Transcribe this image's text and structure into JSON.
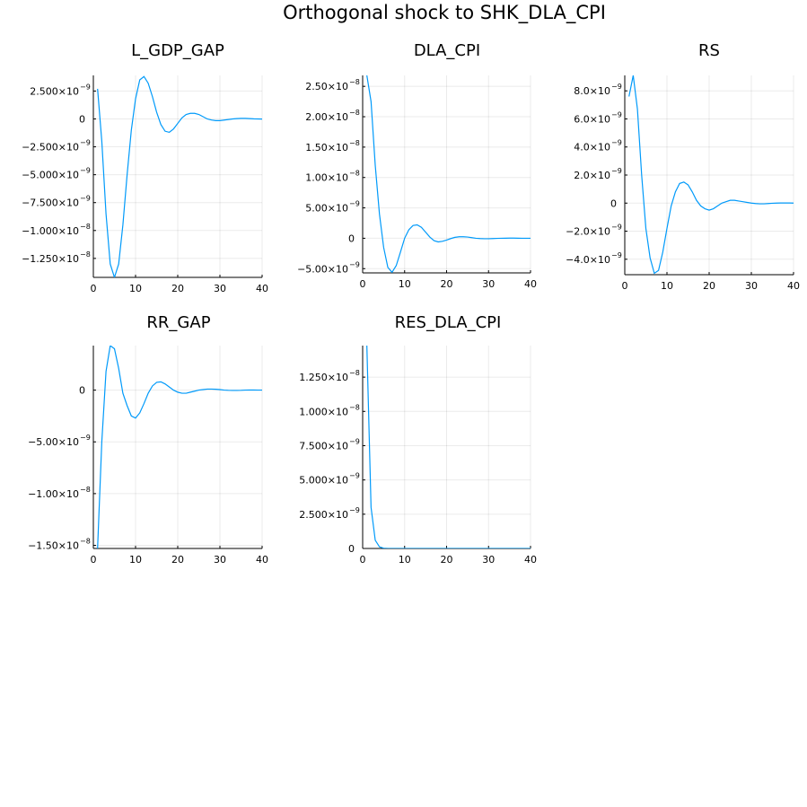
{
  "figure": {
    "title": "Orthogonal shock to SHK_DLA_CPI",
    "line_color": "#009AFA"
  },
  "chart_data": [
    {
      "type": "line",
      "title": "L_GDP_GAP",
      "xlim": [
        0,
        40
      ],
      "ylim": [
        -1.42e-08,
        3.9e-09
      ],
      "xticks": [
        0,
        10,
        20,
        30,
        40
      ],
      "yticks": [
        {
          "value": 2.5e-09,
          "mant": "2.500×10",
          "exp": "−9"
        },
        {
          "value": 0,
          "mant": "0",
          "exp": ""
        },
        {
          "value": -2.5e-09,
          "mant": "−2.500×10",
          "exp": "−9"
        },
        {
          "value": -5e-09,
          "mant": "−5.000×10",
          "exp": "−9"
        },
        {
          "value": -7.5e-09,
          "mant": "−7.500×10",
          "exp": "−9"
        },
        {
          "value": -1e-08,
          "mant": "−1.000×10",
          "exp": "−8"
        },
        {
          "value": -1.25e-08,
          "mant": "−1.250×10",
          "exp": "−8"
        }
      ],
      "x": [
        1,
        2,
        3,
        4,
        5,
        6,
        7,
        8,
        9,
        10,
        11,
        12,
        13,
        14,
        15,
        16,
        17,
        18,
        19,
        20,
        21,
        22,
        23,
        24,
        25,
        26,
        27,
        28,
        29,
        30,
        31,
        32,
        33,
        34,
        35,
        36,
        37,
        38,
        39,
        40
      ],
      "values": [
        2.7e-09,
        -2e-09,
        -8.5e-09,
        -1.3e-08,
        -1.42e-08,
        -1.3e-08,
        -9.5e-09,
        -5e-09,
        -1e-09,
        1.8e-09,
        3.5e-09,
        3.8e-09,
        3.2e-09,
        2e-09,
        6e-10,
        -5e-10,
        -1.1e-09,
        -1.2e-09,
        -9e-10,
        -4e-10,
        1e-10,
        4e-10,
        5e-10,
        5e-10,
        4e-10,
        2e-10,
        0,
        -1e-10,
        -1.5e-10,
        -1.5e-10,
        -1e-10,
        -5e-11,
        0,
        3e-11,
        5e-11,
        5e-11,
        3e-11,
        1e-11,
        0,
        -1e-11
      ]
    },
    {
      "type": "line",
      "title": "DLA_CPI",
      "xlim": [
        0,
        40
      ],
      "ylim": [
        -5.7e-09,
        2.68e-08
      ],
      "xticks": [
        0,
        10,
        20,
        30,
        40
      ],
      "yticks": [
        {
          "value": 2.5e-08,
          "mant": "2.50×10",
          "exp": "−8"
        },
        {
          "value": 2e-08,
          "mant": "2.00×10",
          "exp": "−8"
        },
        {
          "value": 1.5e-08,
          "mant": "1.50×10",
          "exp": "−8"
        },
        {
          "value": 1e-08,
          "mant": "1.00×10",
          "exp": "−8"
        },
        {
          "value": 5e-09,
          "mant": "5.00×10",
          "exp": "−9"
        },
        {
          "value": 0,
          "mant": "0",
          "exp": ""
        },
        {
          "value": -5e-09,
          "mant": "−5.00×10",
          "exp": "−9"
        }
      ],
      "x": [
        1,
        2,
        3,
        4,
        5,
        6,
        7,
        8,
        9,
        10,
        11,
        12,
        13,
        14,
        15,
        16,
        17,
        18,
        19,
        20,
        21,
        22,
        23,
        24,
        25,
        26,
        27,
        28,
        29,
        30,
        31,
        32,
        33,
        34,
        35,
        36,
        37,
        38,
        39,
        40
      ],
      "values": [
        2.68e-08,
        2.25e-08,
        1.2e-08,
        4e-09,
        -1.5e-09,
        -4.8e-09,
        -5.6e-09,
        -4.5e-09,
        -2.3e-09,
        0,
        1.4e-09,
        2.1e-09,
        2.2e-09,
        1.8e-09,
        1e-09,
        2e-10,
        -4e-10,
        -6e-10,
        -5e-10,
        -3e-10,
        -5e-11,
        1.5e-10,
        2.5e-10,
        2.5e-10,
        2e-10,
        1e-10,
        0,
        -5e-11,
        -8e-11,
        -8e-11,
        -5e-11,
        -2e-11,
        0,
        1e-11,
        2e-11,
        2e-11,
        1e-11,
        0,
        0,
        0
      ]
    },
    {
      "type": "line",
      "title": "RS",
      "xlim": [
        0,
        40
      ],
      "ylim": [
        -5.1e-09,
        9.1e-09
      ],
      "xticks": [
        0,
        10,
        20,
        30,
        40
      ],
      "yticks": [
        {
          "value": 8e-09,
          "mant": "8.0×10",
          "exp": "−9"
        },
        {
          "value": 6e-09,
          "mant": "6.0×10",
          "exp": "−9"
        },
        {
          "value": 4e-09,
          "mant": "4.0×10",
          "exp": "−9"
        },
        {
          "value": 2e-09,
          "mant": "2.0×10",
          "exp": "−9"
        },
        {
          "value": 0,
          "mant": "0",
          "exp": ""
        },
        {
          "value": -2e-09,
          "mant": "−2.0×10",
          "exp": "−9"
        },
        {
          "value": -4e-09,
          "mant": "−4.0×10",
          "exp": "−9"
        }
      ],
      "x": [
        1,
        2,
        3,
        4,
        5,
        6,
        7,
        8,
        9,
        10,
        11,
        12,
        13,
        14,
        15,
        16,
        17,
        18,
        19,
        20,
        21,
        22,
        23,
        24,
        25,
        26,
        27,
        28,
        29,
        30,
        31,
        32,
        33,
        34,
        35,
        36,
        37,
        38,
        39,
        40
      ],
      "values": [
        7.6e-09,
        9.1e-09,
        6.7e-09,
        2e-09,
        -1.8e-09,
        -3.9e-09,
        -5e-09,
        -4.8e-09,
        -3.5e-09,
        -1.8e-09,
        -2e-10,
        8e-10,
        1.4e-09,
        1.5e-09,
        1.3e-09,
        8e-10,
        2e-10,
        -2e-10,
        -4e-10,
        -5e-10,
        -4e-10,
        -2e-10,
        0,
        1e-10,
        2e-10,
        2e-10,
        1.5e-10,
        1e-10,
        5e-11,
        0,
        -3e-11,
        -5e-11,
        -5e-11,
        -3e-11,
        -1e-11,
        0,
        1e-11,
        1e-11,
        1e-11,
        0
      ]
    },
    {
      "type": "line",
      "title": "RR_GAP",
      "xlim": [
        0,
        40
      ],
      "ylim": [
        -1.53e-08,
        4.3e-09
      ],
      "xticks": [
        0,
        10,
        20,
        30,
        40
      ],
      "yticks": [
        {
          "value": 0,
          "mant": "0",
          "exp": ""
        },
        {
          "value": -5e-09,
          "mant": "−5.00×10",
          "exp": "−9"
        },
        {
          "value": -1e-08,
          "mant": "−1.00×10",
          "exp": "−8"
        },
        {
          "value": -1.5e-08,
          "mant": "−1.50×10",
          "exp": "−8"
        }
      ],
      "x": [
        1,
        2,
        3,
        4,
        5,
        6,
        7,
        8,
        9,
        10,
        11,
        12,
        13,
        14,
        15,
        16,
        17,
        18,
        19,
        20,
        21,
        22,
        23,
        24,
        25,
        26,
        27,
        28,
        29,
        30,
        31,
        32,
        33,
        34,
        35,
        36,
        37,
        38,
        39,
        40
      ],
      "values": [
        -1.53e-08,
        -5e-09,
        1.8e-09,
        4.3e-09,
        4e-09,
        2.1e-09,
        -3e-10,
        -1.5e-09,
        -2.5e-09,
        -2.7e-09,
        -2.2e-09,
        -1.3e-09,
        -3e-10,
        4e-10,
        7.5e-10,
        8e-10,
        6e-10,
        3e-10,
        0,
        -2e-10,
        -3e-10,
        -3e-10,
        -2e-10,
        -1e-10,
        0,
        5e-11,
        1e-10,
        1e-10,
        8e-11,
        5e-11,
        0,
        -2e-11,
        -3e-11,
        -3e-11,
        -2e-11,
        0,
        1e-11,
        1e-11,
        0,
        0
      ]
    },
    {
      "type": "line",
      "title": "RES_DLA_CPI",
      "xlim": [
        0,
        40
      ],
      "ylim": [
        0,
        1.48e-08
      ],
      "xticks": [
        0,
        10,
        20,
        30,
        40
      ],
      "yticks": [
        {
          "value": 1.25e-08,
          "mant": "1.250×10",
          "exp": "−8"
        },
        {
          "value": 1e-08,
          "mant": "1.000×10",
          "exp": "−8"
        },
        {
          "value": 7.5e-09,
          "mant": "7.500×10",
          "exp": "−9"
        },
        {
          "value": 5e-09,
          "mant": "5.000×10",
          "exp": "−9"
        },
        {
          "value": 2.5e-09,
          "mant": "2.500×10",
          "exp": "−9"
        },
        {
          "value": 0,
          "mant": "0",
          "exp": ""
        }
      ],
      "x": [
        1,
        2,
        3,
        4,
        5,
        6,
        7,
        8,
        9,
        10,
        11,
        12,
        13,
        14,
        15,
        16,
        17,
        18,
        19,
        20,
        21,
        22,
        23,
        24,
        25,
        26,
        27,
        28,
        29,
        30,
        31,
        32,
        33,
        34,
        35,
        36,
        37,
        38,
        39,
        40
      ],
      "values": [
        1.48e-08,
        3e-09,
        6e-10,
        1.2e-10,
        2e-11,
        0,
        0,
        0,
        0,
        0,
        0,
        0,
        0,
        0,
        0,
        0,
        0,
        0,
        0,
        0,
        0,
        0,
        0,
        0,
        0,
        0,
        0,
        0,
        0,
        0,
        0,
        0,
        0,
        0,
        0,
        0,
        0,
        0,
        0,
        0
      ]
    }
  ]
}
